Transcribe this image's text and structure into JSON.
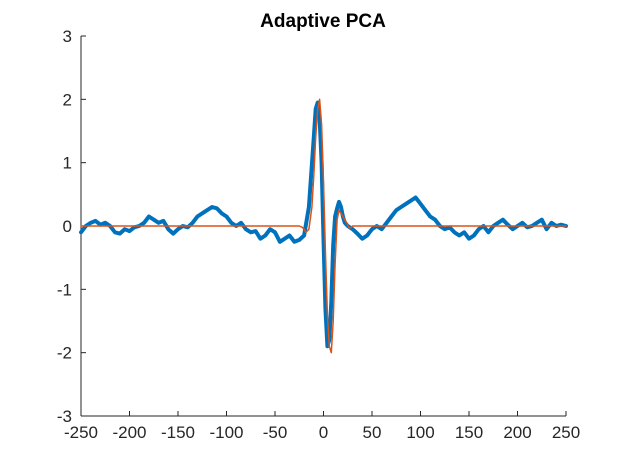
{
  "chart_data": {
    "type": "line",
    "title": "Adaptive PCA",
    "xlabel": "",
    "ylabel": "",
    "xlim": [
      -250,
      250
    ],
    "ylim": [
      -3,
      3
    ],
    "x_ticks": [
      "-250",
      "-200",
      "-150",
      "-100",
      "-50",
      "0",
      "50",
      "100",
      "150",
      "200",
      "250"
    ],
    "y_ticks": [
      "3",
      "2",
      "1",
      "0",
      "-1",
      "-2",
      "-3"
    ],
    "grid": false,
    "legend": "none",
    "series": [
      {
        "color": "#0072BD",
        "style": "thick-noisy",
        "x": [
          -250,
          -245,
          -240,
          -235,
          -230,
          -225,
          -220,
          -215,
          -210,
          -205,
          -200,
          -195,
          -190,
          -185,
          -180,
          -175,
          -170,
          -165,
          -160,
          -155,
          -150,
          -145,
          -140,
          -135,
          -130,
          -125,
          -120,
          -115,
          -110,
          -105,
          -100,
          -95,
          -90,
          -85,
          -80,
          -75,
          -70,
          -65,
          -60,
          -55,
          -50,
          -45,
          -40,
          -35,
          -30,
          -25,
          -20,
          -15,
          -10,
          -8,
          -6,
          -4,
          -2,
          0,
          2,
          4,
          6,
          8,
          10,
          12,
          14,
          16,
          18,
          20,
          22,
          25,
          30,
          35,
          40,
          45,
          50,
          55,
          60,
          65,
          70,
          75,
          80,
          85,
          90,
          95,
          100,
          105,
          110,
          115,
          120,
          125,
          130,
          135,
          140,
          145,
          150,
          155,
          160,
          165,
          170,
          175,
          180,
          185,
          190,
          195,
          200,
          205,
          210,
          215,
          220,
          225,
          230,
          235,
          240,
          245,
          250
        ],
        "y": [
          -0.1,
          0.0,
          0.05,
          0.08,
          0.02,
          0.05,
          0.0,
          -0.1,
          -0.12,
          -0.05,
          -0.08,
          -0.02,
          0.0,
          0.05,
          0.15,
          0.1,
          0.05,
          0.08,
          -0.05,
          -0.12,
          -0.05,
          0.0,
          -0.02,
          0.05,
          0.15,
          0.2,
          0.25,
          0.3,
          0.28,
          0.2,
          0.15,
          0.05,
          0.0,
          0.05,
          -0.05,
          -0.1,
          -0.08,
          -0.2,
          -0.15,
          -0.05,
          -0.1,
          -0.25,
          -0.2,
          -0.15,
          -0.25,
          -0.22,
          -0.15,
          0.3,
          1.4,
          1.85,
          1.95,
          1.7,
          1.0,
          -0.2,
          -1.3,
          -1.9,
          -1.8,
          -1.2,
          -0.3,
          0.15,
          0.28,
          0.38,
          0.3,
          0.15,
          0.05,
          0.0,
          -0.05,
          -0.12,
          -0.2,
          -0.15,
          -0.05,
          0.0,
          -0.05,
          0.05,
          0.15,
          0.25,
          0.3,
          0.35,
          0.4,
          0.45,
          0.35,
          0.25,
          0.15,
          0.1,
          0.0,
          -0.05,
          -0.02,
          -0.1,
          -0.15,
          -0.1,
          -0.2,
          -0.15,
          -0.05,
          0.0,
          -0.1,
          0.0,
          0.05,
          0.1,
          0.02,
          -0.05,
          0.0,
          0.05,
          -0.02,
          0.0,
          0.05,
          0.1,
          -0.05,
          0.05,
          0.0,
          0.02,
          0.0
        ]
      },
      {
        "color": "#D95319",
        "style": "thin",
        "x": [
          -250,
          -25,
          -22,
          -20,
          -18,
          -15,
          -12,
          -10,
          -8,
          -6,
          -4,
          -2,
          0,
          2,
          4,
          6,
          8,
          10,
          12,
          14,
          16,
          18,
          20,
          22,
          24,
          26,
          28,
          30,
          250
        ],
        "y": [
          0,
          0,
          -0.02,
          -0.05,
          -0.1,
          -0.05,
          0.3,
          0.8,
          1.4,
          1.85,
          2.0,
          1.6,
          0.7,
          -0.4,
          -1.4,
          -1.9,
          -2.0,
          -1.5,
          -0.6,
          0.1,
          0.25,
          0.2,
          0.15,
          0.1,
          0.05,
          -0.02,
          -0.03,
          0,
          0
        ]
      }
    ]
  }
}
